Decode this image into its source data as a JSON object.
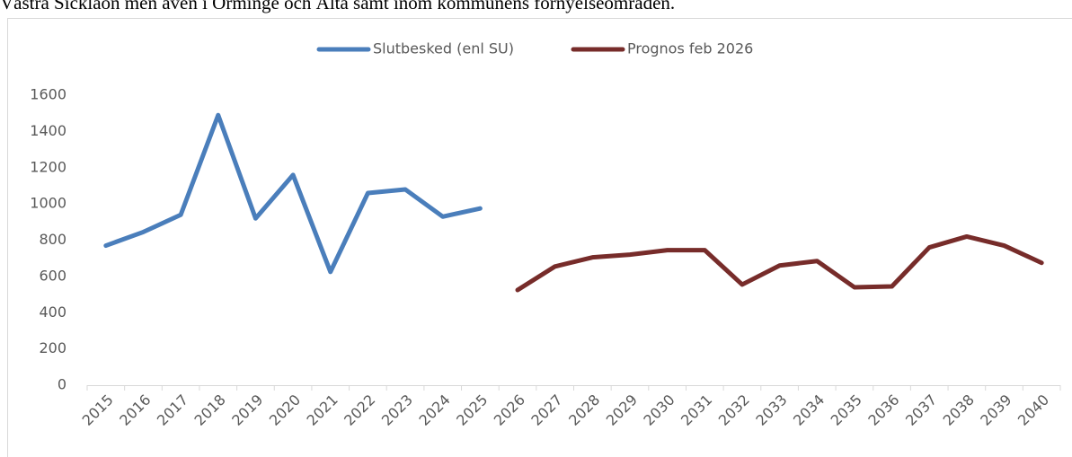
{
  "caption": "Västra Sicklaön men även i Orminge och Älta samt inom kommunens förnyelseområden.",
  "chart_data": {
    "type": "line",
    "categories": [
      "2015",
      "2016",
      "2017",
      "2018",
      "2019",
      "2020",
      "2021",
      "2022",
      "2023",
      "2024",
      "2025",
      "2026",
      "2027",
      "2028",
      "2029",
      "2030",
      "2031",
      "2032",
      "2033",
      "2034",
      "2035",
      "2036",
      "2037",
      "2038",
      "2039",
      "2040"
    ],
    "series": [
      {
        "name": "Slutbesked (enl SU)",
        "color": "#4a7ebb",
        "values": [
          770,
          845,
          940,
          1490,
          920,
          1160,
          625,
          1060,
          1080,
          930,
          975,
          null,
          null,
          null,
          null,
          null,
          null,
          null,
          null,
          null,
          null,
          null,
          null,
          null,
          null,
          null
        ]
      },
      {
        "name": "Prognos feb 2026",
        "color": "#772c2a",
        "values": [
          null,
          null,
          null,
          null,
          null,
          null,
          null,
          null,
          null,
          null,
          null,
          525,
          655,
          705,
          720,
          745,
          745,
          555,
          660,
          685,
          540,
          545,
          760,
          820,
          770,
          675
        ]
      }
    ],
    "ylim": [
      0,
      1600
    ],
    "yticks": [
      0,
      200,
      400,
      600,
      800,
      1000,
      1200,
      1400,
      1600
    ],
    "grid": false,
    "legend": "top"
  }
}
